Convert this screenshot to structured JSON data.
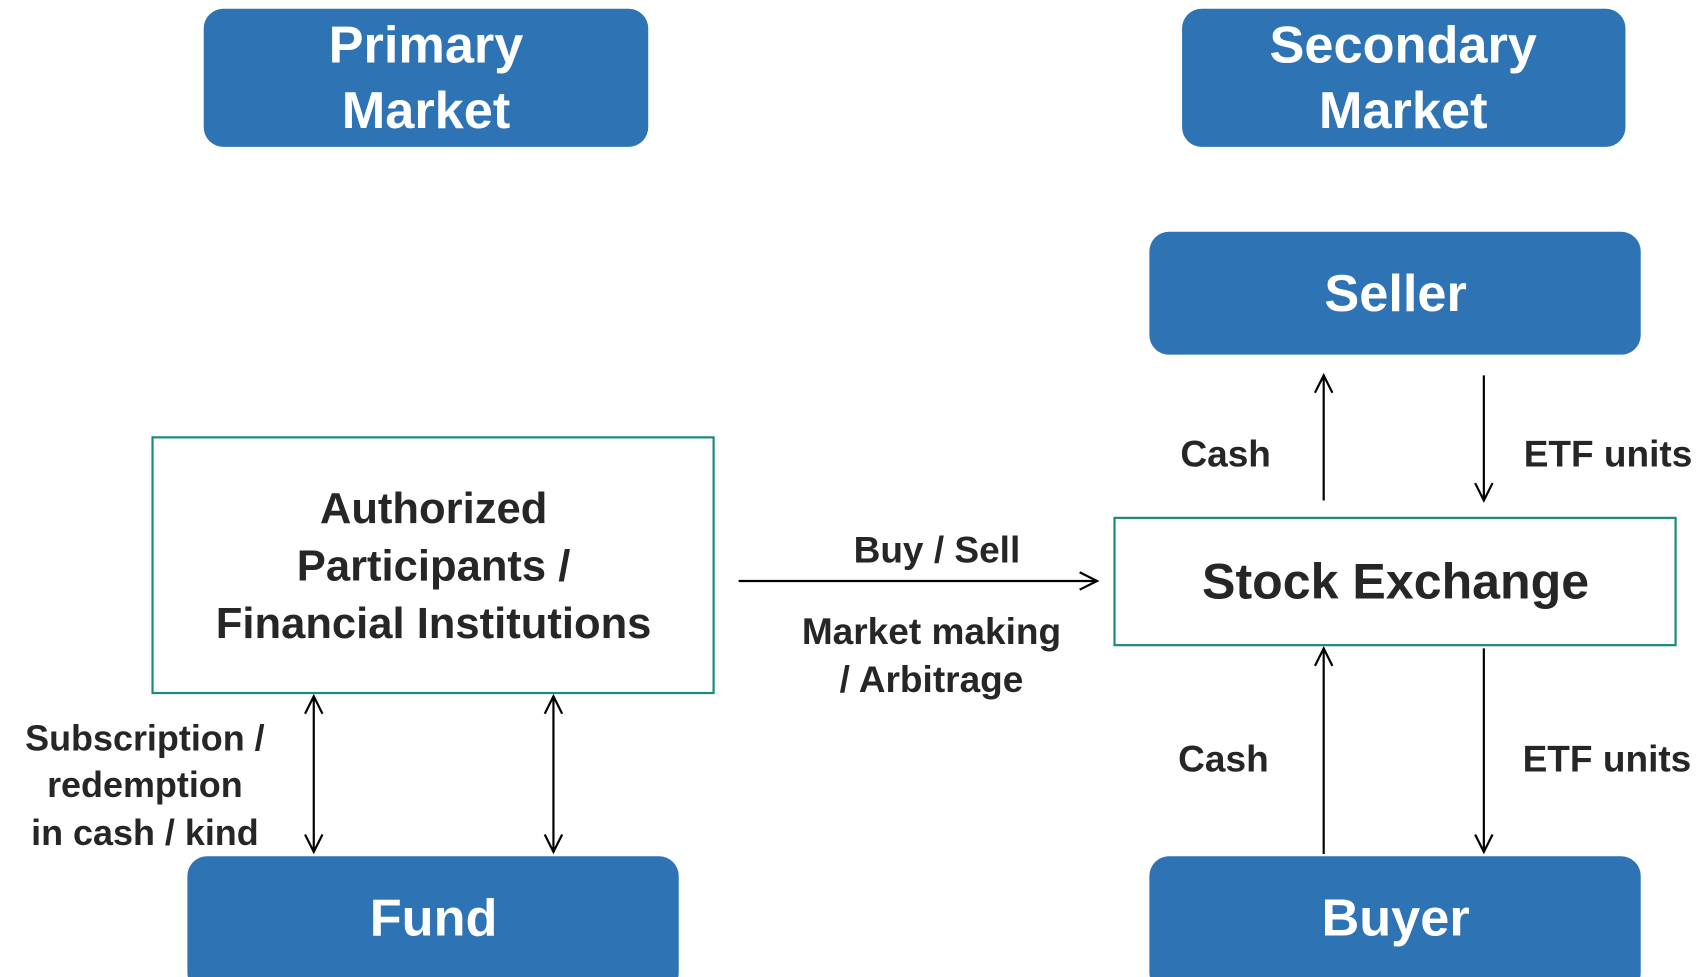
{
  "headers": {
    "primary": [
      "Primary",
      "Market"
    ],
    "secondary": [
      "Secondary",
      "Market"
    ]
  },
  "nodes": {
    "seller": "Seller",
    "stock_exchange": "Stock Exchange",
    "authorized_participants": [
      "Authorized",
      "Participants /",
      "Financial Institutions"
    ],
    "fund": "Fund",
    "buyer": "Buyer"
  },
  "edges": {
    "buy_sell": "Buy / Sell",
    "market_making": [
      "Market making",
      "/ Arbitrage"
    ],
    "subscription": [
      "Subscription /",
      "redemption",
      "in cash / kind"
    ],
    "seller_cash": "Cash",
    "seller_etf": "ETF units",
    "buyer_cash": "Cash",
    "buyer_etf": "ETF units"
  }
}
